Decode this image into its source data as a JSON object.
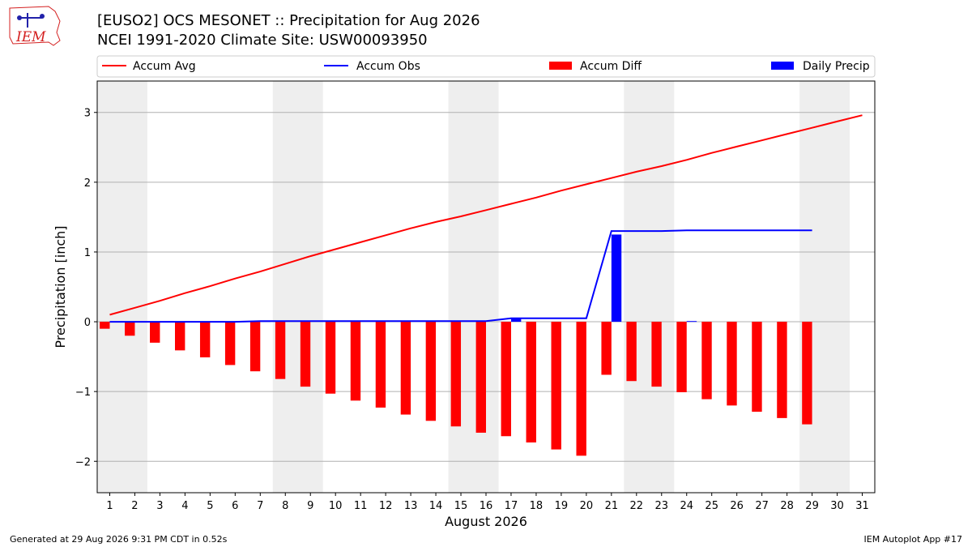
{
  "header": {
    "title_line1": "[EUSO2] OCS MESONET :: Precipitation for Aug 2026",
    "title_line2": "NCEI 1991-2020 Climate Site: USW00093950",
    "logo_text": "IEM"
  },
  "footer": {
    "generated": "Generated at 29 Aug 2026 9:31 PM CDT in 0.52s",
    "app": "IEM Autoplot App #17"
  },
  "colors": {
    "avg": "#ff0000",
    "obs": "#0000ff",
    "diff": "#ff0000",
    "daily": "#0000ff",
    "weekend_band": "#eeeeee",
    "grid": "#b0b0b0"
  },
  "chart_data": {
    "type": "bar",
    "xlabel": "August 2026",
    "ylabel": "Precipitation [inch]",
    "xlim": [
      0.5,
      31.5
    ],
    "ylim": [
      -2.45,
      3.45
    ],
    "yticks": [
      -2,
      -1,
      0,
      1,
      2,
      3
    ],
    "ytick_labels": [
      "−2",
      "−1",
      "0",
      "1",
      "2",
      "3"
    ],
    "x": [
      1,
      2,
      3,
      4,
      5,
      6,
      7,
      8,
      9,
      10,
      11,
      12,
      13,
      14,
      15,
      16,
      17,
      18,
      19,
      20,
      21,
      22,
      23,
      24,
      25,
      26,
      27,
      28,
      29,
      30,
      31
    ],
    "weekend_bands": [
      [
        0.5,
        2.5
      ],
      [
        7.5,
        9.5
      ],
      [
        14.5,
        16.5
      ],
      [
        21.5,
        23.5
      ],
      [
        28.5,
        30.5
      ]
    ],
    "grid": "y",
    "legend": {
      "placement": "top",
      "entries": [
        "Accum Avg",
        "Accum Obs",
        "Accum Diff",
        "Daily Precip"
      ]
    },
    "series": [
      {
        "name": "Accum Avg",
        "kind": "line",
        "x": [
          1,
          2,
          3,
          4,
          5,
          6,
          7,
          8,
          9,
          10,
          11,
          12,
          13,
          14,
          15,
          16,
          17,
          18,
          19,
          20,
          21,
          22,
          23,
          24,
          25,
          26,
          27,
          28,
          29,
          30,
          31
        ],
        "values": [
          0.1,
          0.2,
          0.3,
          0.41,
          0.51,
          0.62,
          0.72,
          0.83,
          0.94,
          1.04,
          1.14,
          1.24,
          1.34,
          1.43,
          1.51,
          1.6,
          1.69,
          1.78,
          1.88,
          1.97,
          2.06,
          2.15,
          2.23,
          2.32,
          2.42,
          2.51,
          2.6,
          2.69,
          2.78,
          2.87,
          2.96
        ]
      },
      {
        "name": "Accum Obs",
        "kind": "line",
        "x": [
          1,
          2,
          3,
          4,
          5,
          6,
          7,
          8,
          9,
          10,
          11,
          12,
          13,
          14,
          15,
          16,
          17,
          18,
          19,
          20,
          21,
          22,
          23,
          24,
          25,
          26,
          27,
          28,
          29
        ],
        "values": [
          0.0,
          0.0,
          0.0,
          0.0,
          0.0,
          0.0,
          0.01,
          0.01,
          0.01,
          0.01,
          0.01,
          0.01,
          0.01,
          0.01,
          0.01,
          0.01,
          0.05,
          0.05,
          0.05,
          0.05,
          1.3,
          1.3,
          1.3,
          1.31,
          1.31,
          1.31,
          1.31,
          1.31,
          1.31
        ]
      },
      {
        "name": "Accum Diff",
        "kind": "bar",
        "offset": -0.2,
        "x": [
          1,
          2,
          3,
          4,
          5,
          6,
          7,
          8,
          9,
          10,
          11,
          12,
          13,
          14,
          15,
          16,
          17,
          18,
          19,
          20,
          21,
          22,
          23,
          24,
          25,
          26,
          27,
          28,
          29
        ],
        "values": [
          -0.1,
          -0.2,
          -0.3,
          -0.41,
          -0.51,
          -0.62,
          -0.71,
          -0.82,
          -0.93,
          -1.03,
          -1.13,
          -1.23,
          -1.33,
          -1.42,
          -1.5,
          -1.59,
          -1.64,
          -1.73,
          -1.83,
          -1.92,
          -0.76,
          -0.85,
          -0.93,
          -1.01,
          -1.11,
          -1.2,
          -1.29,
          -1.38,
          -1.47
        ]
      },
      {
        "name": "Daily Precip",
        "kind": "bar",
        "offset": 0.2,
        "x": [
          1,
          2,
          3,
          4,
          5,
          6,
          7,
          8,
          9,
          10,
          11,
          12,
          13,
          14,
          15,
          16,
          17,
          18,
          19,
          20,
          21,
          22,
          23,
          24,
          25,
          26,
          27,
          28,
          29
        ],
        "values": [
          0,
          0,
          0,
          0,
          0,
          0,
          0.01,
          0,
          0,
          0,
          0,
          0,
          0,
          0,
          0,
          0,
          0.04,
          0,
          0,
          0,
          1.25,
          0,
          0,
          0.01,
          0,
          0,
          0,
          0,
          0
        ]
      }
    ]
  }
}
